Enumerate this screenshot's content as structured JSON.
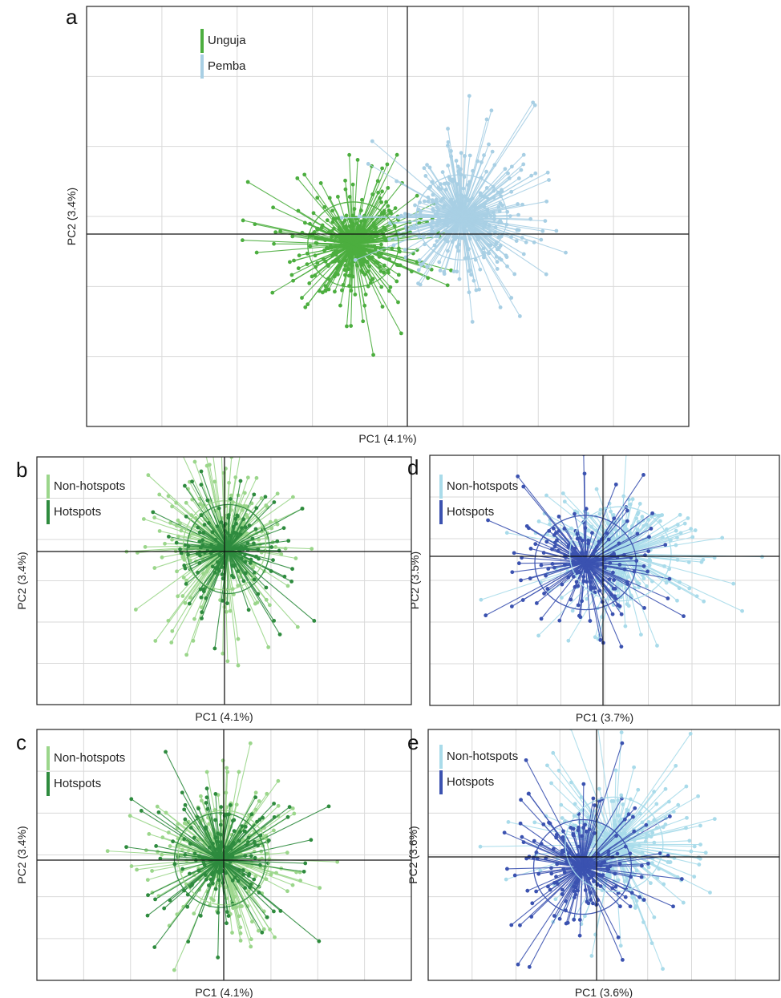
{
  "chart_data": [
    {
      "panel": "a",
      "type": "scatter",
      "xlabel": "PC1 (4.1%)",
      "ylabel": "PC2 (3.4%)",
      "legend_position": "top-left",
      "grid": true,
      "series": [
        {
          "name": "Unguja",
          "color": "#4cae3f",
          "center": [
            -0.18,
            -0.05
          ],
          "spread": [
            0.26,
            0.35
          ],
          "n": 380
        },
        {
          "name": "Pemba",
          "color": "#a8cfe4",
          "center": [
            0.18,
            0.08
          ],
          "spread": [
            0.26,
            0.35
          ],
          "n": 380
        }
      ],
      "spider_ellipses": true
    },
    {
      "panel": "b",
      "type": "scatter",
      "xlabel": "PC1 (4.1%)",
      "ylabel": "PC2 (3.4%)",
      "legend_position": "top-left",
      "grid": true,
      "series": [
        {
          "name": "Non-hotspots",
          "color": "#9bd68b",
          "center": [
            0.0,
            0.05
          ],
          "spread": [
            0.38,
            0.62
          ],
          "n": 260
        },
        {
          "name": "Hotspots",
          "color": "#2e8b3e",
          "center": [
            0.02,
            0.02
          ],
          "spread": [
            0.38,
            0.62
          ],
          "n": 150
        }
      ],
      "spider_ellipses": true
    },
    {
      "panel": "c",
      "type": "scatter",
      "xlabel": "PC1 (4.1%)",
      "ylabel": "PC2 (3.4%)",
      "legend_position": "top-left",
      "grid": true,
      "series": [
        {
          "name": "Non-hotspots",
          "color": "#9bd68b",
          "center": [
            0.0,
            0.02
          ],
          "spread": [
            0.42,
            0.65
          ],
          "n": 260
        },
        {
          "name": "Hotspots",
          "color": "#2e8b3e",
          "center": [
            -0.02,
            0.0
          ],
          "spread": [
            0.42,
            0.65
          ],
          "n": 170
        }
      ],
      "spider_ellipses": true
    },
    {
      "panel": "d",
      "type": "scatter",
      "xlabel": "PC1 (3.7%)",
      "ylabel": "PC2 (3.5%)",
      "legend_position": "top-left",
      "grid": true,
      "series": [
        {
          "name": "Non-hotspots",
          "color": "#a9dbea",
          "center": [
            0.1,
            0.02
          ],
          "spread": [
            0.5,
            0.65
          ],
          "n": 260
        },
        {
          "name": "Hotspots",
          "color": "#3b52b0",
          "center": [
            -0.1,
            -0.05
          ],
          "spread": [
            0.5,
            0.65
          ],
          "n": 170
        }
      ],
      "spider_ellipses": true
    },
    {
      "panel": "e",
      "type": "scatter",
      "xlabel": "PC1 (3.6%)",
      "ylabel": "PC2 (3.6%)",
      "legend_position": "top-left",
      "grid": true,
      "series": [
        {
          "name": "Non-hotspots",
          "color": "#a9dbea",
          "center": [
            0.1,
            0.1
          ],
          "spread": [
            0.48,
            0.65
          ],
          "n": 260
        },
        {
          "name": "Hotspots",
          "color": "#3b52b0",
          "center": [
            -0.08,
            -0.08
          ],
          "spread": [
            0.48,
            0.65
          ],
          "n": 180
        }
      ],
      "spider_ellipses": true
    }
  ]
}
